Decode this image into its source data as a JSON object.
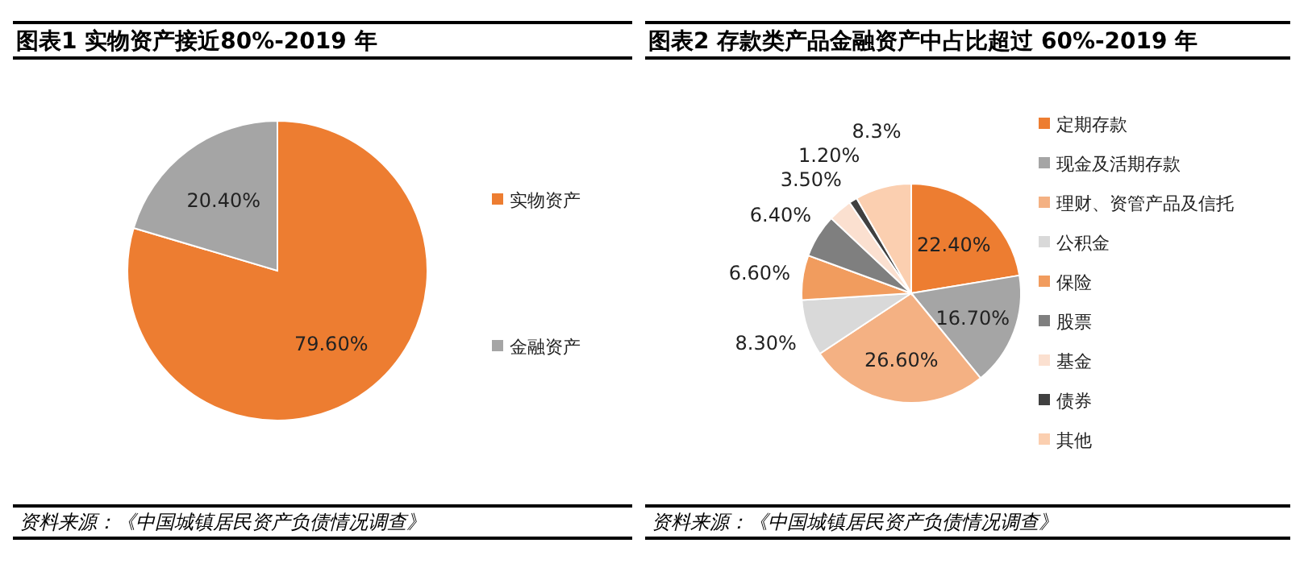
{
  "chart_data": [
    {
      "type": "pie",
      "title": "图表1      实物资产接近80%-2019 年",
      "categories": [
        "实物资产",
        "金融资产"
      ],
      "values": [
        79.6,
        20.4
      ],
      "colors": [
        "#ed7d31",
        "#a5a5a5"
      ],
      "value_labels": [
        "79.60%",
        "20.40%"
      ],
      "legend": "right",
      "annotations": [
        "资料来源：《中国城镇居民资产负债情况调查》"
      ]
    },
    {
      "type": "pie",
      "title": "图表2      存款类产品金融资产中占比超过 60%-2019 年",
      "categories": [
        "定期存款",
        "现金及活期存款",
        "理财、资管产品及信托",
        "公积金",
        "保险",
        "股票",
        "基金",
        "债券",
        "其他"
      ],
      "values": [
        22.4,
        16.7,
        26.6,
        8.3,
        6.6,
        6.4,
        3.5,
        1.2,
        8.3
      ],
      "colors": [
        "#ed7d31",
        "#a5a5a5",
        "#f4b183",
        "#d9d9d9",
        "#f19c5e",
        "#7f7f7f",
        "#fbe0d0",
        "#404040",
        "#fbcfb0"
      ],
      "value_labels": [
        "22.40%",
        "16.70%",
        "26.60%",
        "8.30%",
        "6.60%",
        "6.40%",
        "3.50%",
        "1.20%",
        "8.3%"
      ],
      "legend": "right",
      "annotations": [
        "资料来源：《中国城镇居民资产负债情况调查》"
      ]
    }
  ]
}
